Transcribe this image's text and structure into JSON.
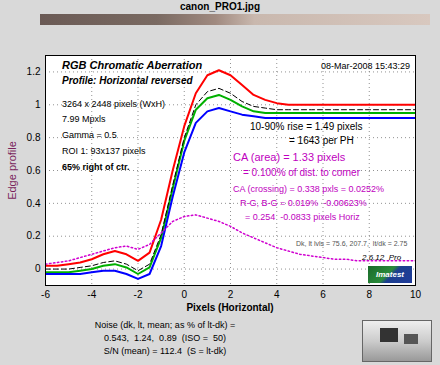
{
  "chart_data": {
    "type": "line",
    "title": "canon_PRO1.jpg",
    "xlabel": "Pixels (Horizontal)",
    "ylabel": "Edge profile",
    "x": [
      -6,
      -5.5,
      -5,
      -4.5,
      -4,
      -3.5,
      -3,
      -2.5,
      -2,
      -1.5,
      -1,
      -0.5,
      0,
      0.5,
      1,
      1.5,
      2,
      2.5,
      3,
      3.5,
      4,
      4.5,
      5,
      5.5,
      6,
      6.5,
      7,
      7.5,
      8,
      8.5,
      9,
      9.5,
      10
    ],
    "series": [
      {
        "color": "#ff0000",
        "line_style": "solid",
        "values": [
          0.02,
          0.02,
          0.03,
          0.04,
          0.06,
          0.09,
          0.11,
          0.09,
          0.05,
          0.1,
          0.3,
          0.6,
          0.87,
          1.07,
          1.18,
          1.21,
          1.18,
          1.12,
          1.06,
          1.03,
          1.01,
          1.0,
          1.0,
          1.0,
          1.0,
          1.0,
          1.0,
          1.0,
          1.0,
          1.0,
          1.0,
          1.0,
          1.0
        ]
      },
      {
        "color": "#00b000",
        "line_style": "solid",
        "values": [
          -0.02,
          -0.02,
          -0.02,
          -0.01,
          0.0,
          0.02,
          0.03,
          0.01,
          -0.03,
          0.01,
          0.19,
          0.49,
          0.78,
          0.97,
          1.04,
          1.06,
          1.03,
          0.99,
          0.96,
          0.95,
          0.95,
          0.95,
          0.95,
          0.95,
          0.95,
          0.95,
          0.95,
          0.95,
          0.95,
          0.95,
          0.95,
          0.95,
          0.95
        ]
      },
      {
        "color": "#0000ff",
        "line_style": "solid",
        "values": [
          -0.03,
          -0.03,
          -0.03,
          -0.03,
          -0.02,
          -0.01,
          -0.01,
          -0.03,
          -0.06,
          -0.03,
          0.14,
          0.44,
          0.71,
          0.89,
          0.96,
          0.98,
          0.96,
          0.94,
          0.93,
          0.92,
          0.92,
          0.92,
          0.92,
          0.92,
          0.92,
          0.92,
          0.92,
          0.92,
          0.92,
          0.92,
          0.92,
          0.92,
          0.92
        ]
      },
      {
        "color": "#000000",
        "line_style": "dashed",
        "values": [
          0.0,
          0.0,
          0.0,
          0.01,
          0.02,
          0.04,
          0.05,
          0.03,
          -0.01,
          0.03,
          0.21,
          0.51,
          0.8,
          1.0,
          1.08,
          1.1,
          1.07,
          1.02,
          0.99,
          0.98,
          0.97,
          0.97,
          0.97,
          0.97,
          0.97,
          0.97,
          0.97,
          0.97,
          0.97,
          0.97,
          0.97,
          0.97,
          0.97
        ]
      },
      {
        "color": "#d000d0",
        "line_style": "dotted",
        "values": [
          0.03,
          0.04,
          0.05,
          0.07,
          0.09,
          0.11,
          0.13,
          0.14,
          0.12,
          0.15,
          0.22,
          0.29,
          0.32,
          0.33,
          0.31,
          0.29,
          0.26,
          0.22,
          0.19,
          0.16,
          0.13,
          0.11,
          0.09,
          0.08,
          0.07,
          0.06,
          0.06,
          0.05,
          0.05,
          0.05,
          0.05,
          0.05,
          0.05
        ]
      }
    ],
    "xlim": [
      -6,
      10
    ],
    "xticks": [
      -6,
      -4,
      -2,
      0,
      2,
      4,
      6,
      8,
      10
    ],
    "ylim": [
      -0.1,
      1.3
    ],
    "yticks": [
      0,
      0.2,
      0.4,
      0.6,
      0.8,
      1,
      1.2
    ],
    "grid": true,
    "annotations": [
      "RGB Chromatic Aberration",
      "Profile: Horizontal reversed",
      "08-Mar-2008 15:43:29",
      "3264 x 2448 pixels (WxH)",
      "7.99 Mpxls",
      "Gamma = 0.5",
      "ROI 1: 93x137 pixels",
      "65% right of ctr.",
      "10-90% rise = 1.49 pixels",
      "= 1643 per PH",
      "CA (area) = 1.33 pixels",
      "= 0.100% of dist. to corner",
      "CA (crossing) = 0.338 pxls = 0.0252%",
      "R-G, B-G = 0.019%  -0.00623%",
      "= 0.254  -0.0833 pixels Horiz",
      "Dk, lt lvls = 75.6, 207.7,  lt/dk = 2.75",
      "2.6.12  Pro"
    ],
    "logo": "Imatest",
    "caption": [
      "Noise (dk, lt, mean; as % of lt-dk) =",
      "0.543,  1.24,  0.89  (ISO =  50)",
      "S/N (mean) = 112.4  (S = lt-dk)"
    ]
  }
}
